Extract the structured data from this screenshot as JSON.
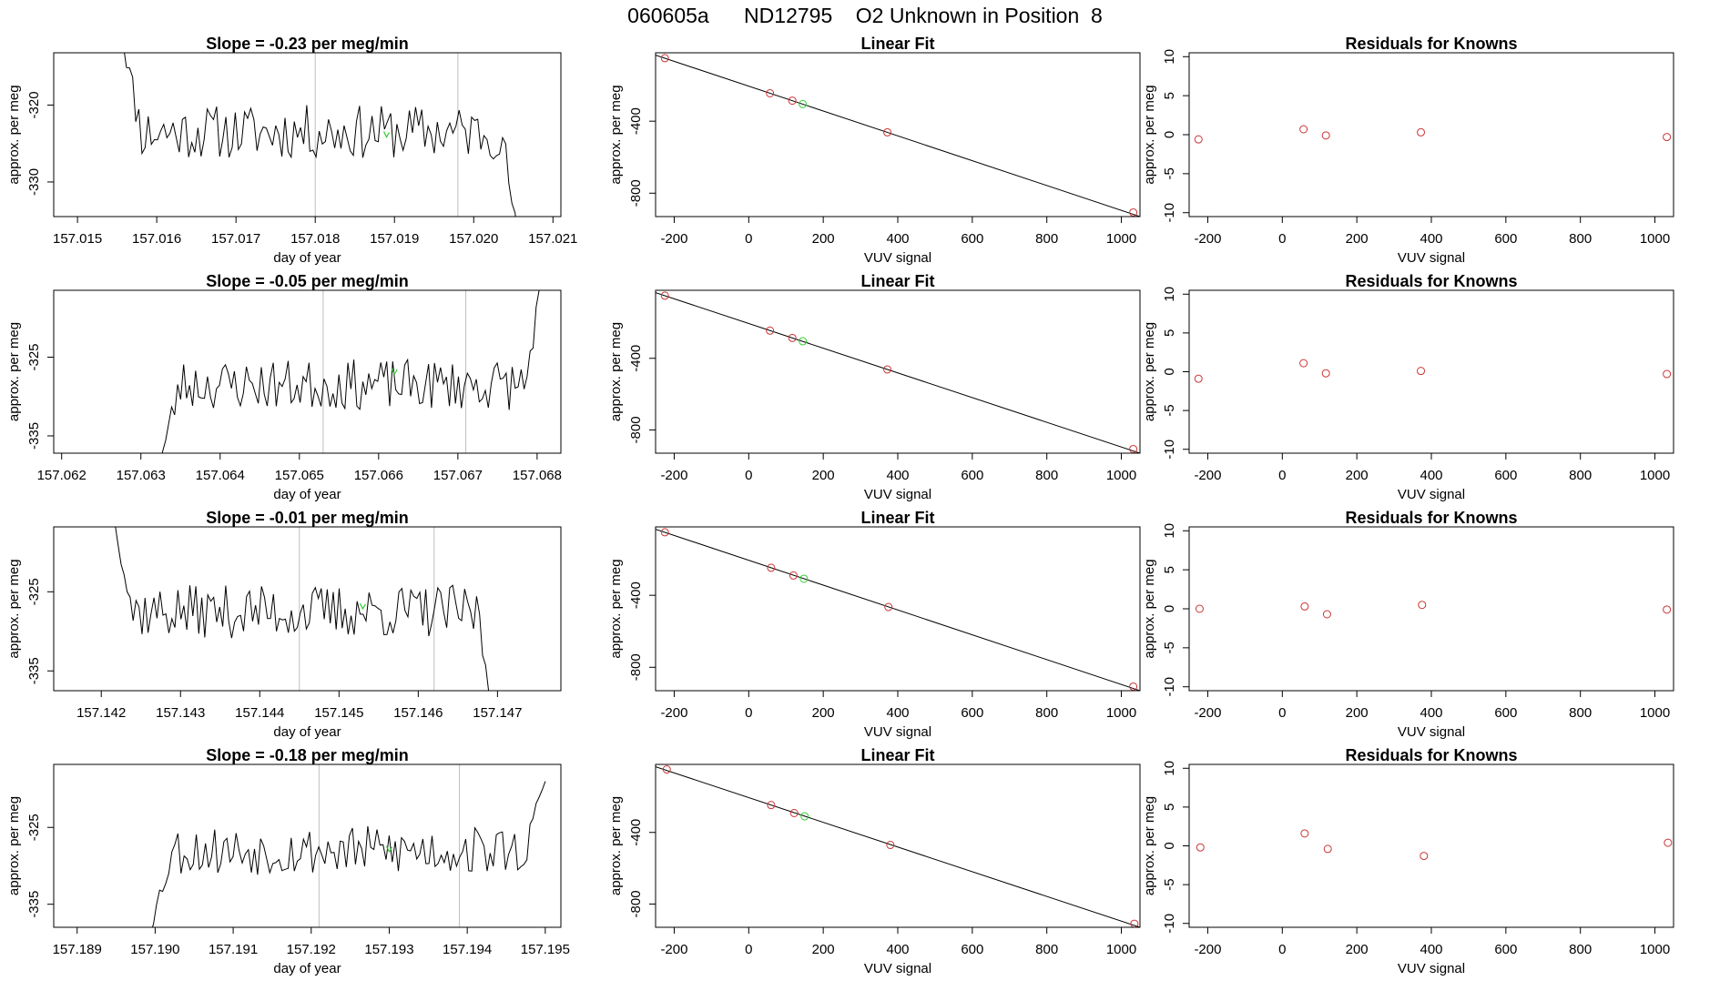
{
  "page": {
    "title": "060605a      ND12795    O2 Unknown in Position  8"
  },
  "colors": {
    "trace": "#000000",
    "known_points": "#cd3333",
    "unknown_point": "#33cc33",
    "window_markers": "#bebebe"
  },
  "chart_data": [
    {
      "type": "line",
      "title": "Slope =  -0.23  per meg/min",
      "xlabel": "day of year",
      "ylabel": "approx. per meg",
      "xlim": [
        157.0147,
        157.0211
      ],
      "ylim": [
        -334.5,
        -313.2
      ],
      "xticks": [
        157.015,
        157.016,
        157.017,
        157.018,
        157.019,
        157.02,
        157.021
      ],
      "xtick_labels": [
        "157.015",
        "157.016",
        "157.017",
        "157.018",
        "157.019",
        "157.020",
        "157.021"
      ],
      "yticks": [
        -320,
        -330
      ],
      "ytick_labels": [
        "-320",
        "-330"
      ],
      "window_markers_x": [
        157.018,
        157.0198
      ],
      "series": [
        {
          "x_start": 157.0155,
          "x_end": 157.0206,
          "level": -323.5,
          "start_value": -308,
          "end_value": -340,
          "amplitude": 2.2,
          "seed": 11
        }
      ],
      "unknown_point": {
        "x": 157.0189,
        "y": -323.8
      }
    },
    {
      "type": "scatter",
      "title": "Linear Fit",
      "xlabel": "VUV signal",
      "ylabel": "approx. per meg",
      "xlim": [
        -250,
        1050
      ],
      "ylim": [
        -930,
        -20
      ],
      "xticks": [
        -200,
        0,
        200,
        400,
        600,
        800,
        1000
      ],
      "xtick_labels": [
        "-200",
        "0",
        "200",
        "400",
        "600",
        "800",
        "1000"
      ],
      "yticks": [
        -400,
        -800
      ],
      "ytick_labels": [
        "-400",
        "-800"
      ],
      "fit_line": {
        "x": [
          -250,
          1050
        ],
        "y": [
          -33,
          -930
        ]
      },
      "known_points": {
        "x": [
          -225,
          57,
          117,
          372,
          1032
        ],
        "y": [
          -50,
          -245,
          -286,
          -462,
          -907
        ]
      },
      "unknown_point": {
        "x": 145,
        "y": -305
      }
    },
    {
      "type": "scatter",
      "title": "Residuals for Knowns",
      "xlabel": "VUV signal",
      "ylabel": "approx. per meg",
      "xlim": [
        -250,
        1050
      ],
      "ylim": [
        -10.5,
        10.5
      ],
      "xticks": [
        -200,
        0,
        200,
        400,
        600,
        800,
        1000
      ],
      "xtick_labels": [
        "-200",
        "0",
        "200",
        "400",
        "600",
        "800",
        "1000"
      ],
      "yticks": [
        10,
        5,
        0,
        -5,
        -10
      ],
      "ytick_labels": [
        "10",
        "5",
        "0",
        "-5",
        "-10"
      ],
      "points": {
        "x": [
          -225,
          57,
          117,
          372,
          1032
        ],
        "y": [
          -0.6,
          0.7,
          -0.1,
          0.3,
          -0.3
        ]
      }
    },
    {
      "type": "line",
      "title": "Slope =  -0.05  per meg/min",
      "xlabel": "day of year",
      "ylabel": "approx. per meg",
      "xlim": [
        157.0619,
        157.0683
      ],
      "ylim": [
        -337.2,
        -316.5
      ],
      "xticks": [
        157.062,
        157.063,
        157.064,
        157.065,
        157.066,
        157.067,
        157.068
      ],
      "xtick_labels": [
        "157.062",
        "157.063",
        "157.064",
        "157.065",
        "157.066",
        "157.067",
        "157.068"
      ],
      "yticks": [
        -325,
        -335
      ],
      "ytick_labels": [
        "-325",
        "-335"
      ],
      "window_markers_x": [
        157.0653,
        157.0671
      ],
      "series": [
        {
          "x_start": 157.0632,
          "x_end": 157.0681,
          "level": -328.5,
          "start_value": -340,
          "end_value": -312,
          "amplitude": 2.0,
          "seed": 23
        }
      ],
      "unknown_point": {
        "x": 157.0662,
        "y": -326.8
      }
    },
    {
      "type": "scatter",
      "title": "Linear Fit",
      "xlabel": "VUV signal",
      "ylabel": "approx. per meg",
      "xlim": [
        -250,
        1050
      ],
      "ylim": [
        -930,
        -20
      ],
      "xticks": [
        -200,
        0,
        200,
        400,
        600,
        800,
        1000
      ],
      "xtick_labels": [
        "-200",
        "0",
        "200",
        "400",
        "600",
        "800",
        "1000"
      ],
      "yticks": [
        -400,
        -800
      ],
      "ytick_labels": [
        "-400",
        "-800"
      ],
      "fit_line": {
        "x": [
          -250,
          1050
        ],
        "y": [
          -33,
          -930
        ]
      },
      "known_points": {
        "x": [
          -225,
          57,
          117,
          372,
          1032
        ],
        "y": [
          -50,
          -245,
          -286,
          -462,
          -907
        ]
      },
      "unknown_point": {
        "x": 145,
        "y": -305
      }
    },
    {
      "type": "scatter",
      "title": "Residuals for Knowns",
      "xlabel": "VUV signal",
      "ylabel": "approx. per meg",
      "xlim": [
        -250,
        1050
      ],
      "ylim": [
        -10.5,
        10.5
      ],
      "xticks": [
        -200,
        0,
        200,
        400,
        600,
        800,
        1000
      ],
      "xtick_labels": [
        "-200",
        "0",
        "200",
        "400",
        "600",
        "800",
        "1000"
      ],
      "yticks": [
        10,
        5,
        0,
        -5,
        -10
      ],
      "ytick_labels": [
        "10",
        "5",
        "0",
        "-5",
        "-10"
      ],
      "points": {
        "x": [
          -225,
          57,
          117,
          372,
          1032
        ],
        "y": [
          -0.9,
          1.1,
          -0.2,
          0.1,
          -0.3
        ]
      }
    },
    {
      "type": "line",
      "title": "Slope =  -0.01  per meg/min",
      "xlabel": "day of year",
      "ylabel": "approx. per meg",
      "xlim": [
        157.1414,
        157.1478
      ],
      "ylim": [
        -337.5,
        -316.8
      ],
      "xticks": [
        157.142,
        157.143,
        157.144,
        157.145,
        157.146,
        157.147
      ],
      "xtick_labels": [
        "157.142",
        "157.143",
        "157.144",
        "157.145",
        "157.146",
        "157.147"
      ],
      "yticks": [
        -325,
        -335
      ],
      "ytick_labels": [
        "-325",
        "-335"
      ],
      "window_markers_x": [
        157.1445,
        157.1462
      ],
      "series": [
        {
          "x_start": 157.1421,
          "x_end": 157.147,
          "level": -327.5,
          "start_value": -312,
          "end_value": -345,
          "amplitude": 2.1,
          "seed": 37
        }
      ],
      "unknown_point": {
        "x": 157.1453,
        "y": -326.8
      }
    },
    {
      "type": "scatter",
      "title": "Linear Fit",
      "xlabel": "VUV signal",
      "ylabel": "approx. per meg",
      "xlim": [
        -250,
        1050
      ],
      "ylim": [
        -930,
        -20
      ],
      "xticks": [
        -200,
        0,
        200,
        400,
        600,
        800,
        1000
      ],
      "xtick_labels": [
        "-200",
        "0",
        "200",
        "400",
        "600",
        "800",
        "1000"
      ],
      "yticks": [
        -400,
        -800
      ],
      "ytick_labels": [
        "-400",
        "-800"
      ],
      "fit_line": {
        "x": [
          -250,
          1050
        ],
        "y": [
          -33,
          -930
        ]
      },
      "known_points": {
        "x": [
          -225,
          60,
          120,
          375,
          1032
        ],
        "y": [
          -50,
          -247,
          -290,
          -465,
          -907
        ]
      },
      "unknown_point": {
        "x": 148,
        "y": -308
      }
    },
    {
      "type": "scatter",
      "title": "Residuals for Knowns",
      "xlabel": "VUV signal",
      "ylabel": "approx. per meg",
      "xlim": [
        -250,
        1050
      ],
      "ylim": [
        -10.5,
        10.5
      ],
      "xticks": [
        -200,
        0,
        200,
        400,
        600,
        800,
        1000
      ],
      "xtick_labels": [
        "-200",
        "0",
        "200",
        "400",
        "600",
        "800",
        "1000"
      ],
      "yticks": [
        10,
        5,
        0,
        -5,
        -10
      ],
      "ytick_labels": [
        "10",
        "5",
        "0",
        "-5",
        "-10"
      ],
      "points": {
        "x": [
          -222,
          60,
          120,
          375,
          1032
        ],
        "y": [
          0.0,
          0.3,
          -0.7,
          0.5,
          -0.1
        ]
      }
    },
    {
      "type": "line",
      "title": "Slope =  -0.18  per meg/min",
      "xlabel": "day of year",
      "ylabel": "approx. per meg",
      "xlim": [
        157.1887,
        157.1952
      ],
      "ylim": [
        -338.0,
        -316.8
      ],
      "xticks": [
        157.189,
        157.19,
        157.191,
        157.192,
        157.193,
        157.194,
        157.195
      ],
      "xtick_labels": [
        "157.189",
        "157.190",
        "157.191",
        "157.192",
        "157.193",
        "157.194",
        "157.195"
      ],
      "yticks": [
        -325,
        -335
      ],
      "ytick_labels": [
        "-325",
        "-335"
      ],
      "window_markers_x": [
        157.1921,
        157.1939
      ],
      "series": [
        {
          "x_start": 157.1899,
          "x_end": 157.195,
          "level": -328.0,
          "start_value": -340,
          "end_value": -319,
          "amplitude": 2.0,
          "seed": 53
        }
      ],
      "unknown_point": {
        "x": 157.193,
        "y": -327.8
      }
    },
    {
      "type": "scatter",
      "title": "Linear Fit",
      "xlabel": "VUV signal",
      "ylabel": "approx. per meg",
      "xlim": [
        -250,
        1050
      ],
      "ylim": [
        -930,
        -20
      ],
      "xticks": [
        -200,
        0,
        200,
        400,
        600,
        800,
        1000
      ],
      "xtick_labels": [
        "-200",
        "0",
        "200",
        "400",
        "600",
        "800",
        "1000"
      ],
      "yticks": [
        -400,
        -800
      ],
      "ytick_labels": [
        "-400",
        "-800"
      ],
      "fit_line": {
        "x": [
          -250,
          1050
        ],
        "y": [
          -33,
          -930
        ]
      },
      "known_points": {
        "x": [
          -220,
          60,
          122,
          380,
          1035
        ],
        "y": [
          -48,
          -247,
          -292,
          -470,
          -910
        ]
      },
      "unknown_point": {
        "x": 150,
        "y": -310
      }
    },
    {
      "type": "scatter",
      "title": "Residuals for Knowns",
      "xlabel": "VUV signal",
      "ylabel": "approx. per meg",
      "xlim": [
        -250,
        1050
      ],
      "ylim": [
        -10.5,
        10.5
      ],
      "xticks": [
        -200,
        0,
        200,
        400,
        600,
        800,
        1000
      ],
      "xtick_labels": [
        "-200",
        "0",
        "200",
        "400",
        "600",
        "800",
        "1000"
      ],
      "yticks": [
        10,
        5,
        0,
        -5,
        -10
      ],
      "ytick_labels": [
        "10",
        "5",
        "0",
        "-5",
        "-10"
      ],
      "points": {
        "x": [
          -220,
          60,
          122,
          380,
          1035
        ],
        "y": [
          -0.2,
          1.6,
          -0.4,
          -1.3,
          0.4
        ]
      }
    }
  ]
}
